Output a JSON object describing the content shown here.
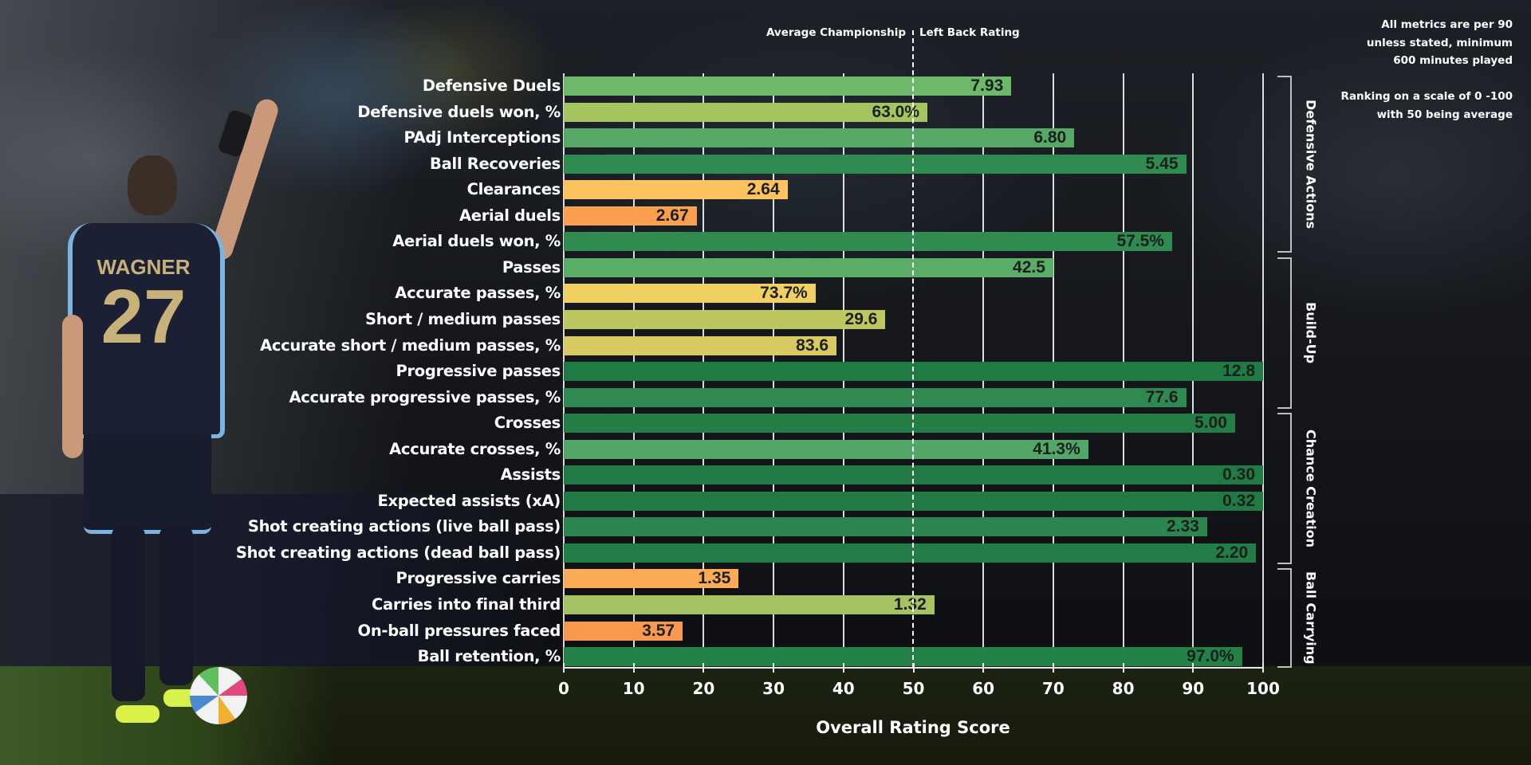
{
  "chart_data": {
    "type": "bar",
    "orientation": "horizontal",
    "player": {
      "name": "WAGNER",
      "number": "27"
    },
    "title": "",
    "xlabel": "Overall Rating Score",
    "ylabel": "",
    "xlim": [
      0,
      100
    ],
    "x_ticks": [
      "0",
      "10",
      "20",
      "30",
      "40",
      "50",
      "60",
      "70",
      "80",
      "90",
      "100"
    ],
    "grid": true,
    "reference_line": {
      "value": 50,
      "label_left": "Average Championship",
      "label_right": "Left Back Rating"
    },
    "notes": [
      "All metrics are per 90",
      "unless stated, minimum",
      "600 minutes played",
      "",
      "Ranking on a scale of 0 -100",
      "with 50 being average"
    ],
    "groups": [
      {
        "name": "Defensive Actions",
        "start": 0,
        "end": 6
      },
      {
        "name": "Build-Up",
        "start": 7,
        "end": 12
      },
      {
        "name": "Chance Creation",
        "start": 13,
        "end": 18
      },
      {
        "name": "Ball Carrying",
        "start": 19,
        "end": 22
      }
    ],
    "categories": [
      "Defensive Duels",
      "Defensive duels won, %",
      "PAdj Interceptions",
      "Ball Recoveries",
      "Clearances",
      "Aerial duels",
      "Aerial duels won, %",
      "Passes",
      "Accurate passes, %",
      "Short / medium passes",
      "Accurate short / medium passes, %",
      "Progressive passes",
      "Accurate progressive passes, %",
      "Crosses",
      "Accurate crosses, %",
      "Assists",
      "Expected assists (xA)",
      "Shot creating actions (live ball pass)",
      "Shot creating actions (dead ball pass)",
      "Progressive carries",
      "Carries into final third",
      "On-ball pressures faced",
      "Ball retention, %"
    ],
    "values": [
      64,
      52,
      73,
      89,
      32,
      19,
      87,
      70,
      36,
      46,
      39,
      100,
      89,
      96,
      75,
      100,
      100,
      92,
      99,
      25,
      53,
      17,
      97
    ],
    "value_labels": [
      "7.93",
      "63.0%",
      "6.80",
      "5.45",
      "2.64",
      "2.67",
      "57.5%",
      "42.5",
      "73.7%",
      "29.6",
      "83.6",
      "12.8",
      "77.6",
      "5.00",
      "41.3%",
      "0.30",
      "0.32",
      "2.33",
      "2.20",
      "1.35",
      "1.32",
      "3.57",
      "97.0%"
    ],
    "colors": [
      "#6db86a",
      "#a3c45f",
      "#56a865",
      "#2f8b50",
      "#fdc35f",
      "#fa9e50",
      "#2f8b50",
      "#5aac66",
      "#f0d063",
      "#bec65f",
      "#d9c962",
      "#207a44",
      "#2e8a50",
      "#237e46",
      "#52a667",
      "#217a44",
      "#217a44",
      "#2c854e",
      "#227c45",
      "#fdab56",
      "#a6c263",
      "#f9994f",
      "#238047"
    ]
  }
}
